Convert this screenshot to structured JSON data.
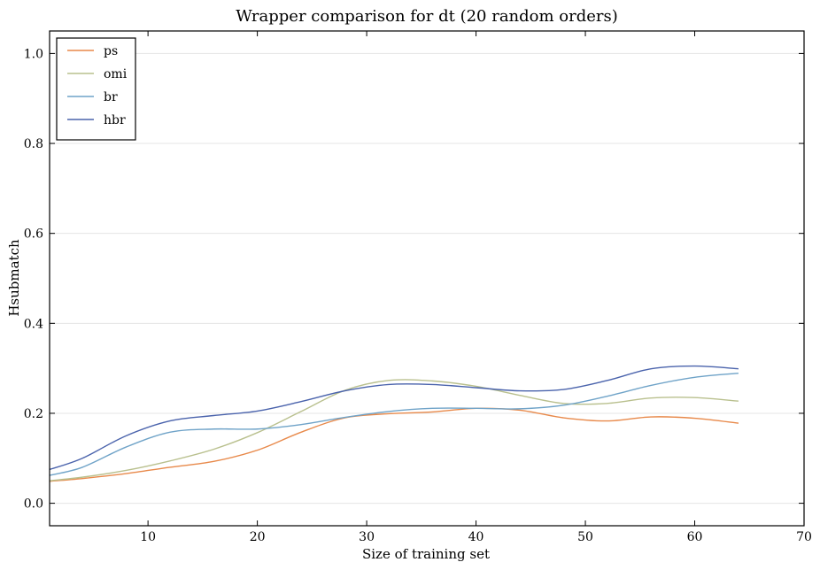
{
  "chart_data": {
    "type": "line",
    "title": "Wrapper comparison for dt (20 random orders)",
    "xlabel": "Size of training set",
    "ylabel": "Hsubmatch",
    "xlim": [
      1,
      70
    ],
    "ylim": [
      -0.05,
      1.05
    ],
    "xticks": [
      10,
      20,
      30,
      40,
      50,
      60,
      70
    ],
    "yticks": [
      0.0,
      0.2,
      0.4,
      0.6,
      0.8,
      1.0
    ],
    "xtick_labels": [
      "10",
      "20",
      "30",
      "40",
      "50",
      "60",
      "70"
    ],
    "ytick_labels": [
      "0.0",
      "0.2",
      "0.4",
      "0.6",
      "0.8",
      "1.0"
    ],
    "grid": "horizontal",
    "legend_position": "top-left",
    "x": [
      1,
      4,
      8,
      12,
      16,
      20,
      24,
      28,
      32,
      36,
      40,
      44,
      48,
      52,
      56,
      60,
      64
    ],
    "series": [
      {
        "name": "ps",
        "color": "#e8894a",
        "values": [
          0.049,
          0.055,
          0.066,
          0.08,
          0.093,
          0.118,
          0.158,
          0.19,
          0.199,
          0.203,
          0.211,
          0.207,
          0.19,
          0.183,
          0.192,
          0.189,
          0.178
        ]
      },
      {
        "name": "omi",
        "color": "#b9c08e",
        "values": [
          0.05,
          0.058,
          0.073,
          0.094,
          0.12,
          0.157,
          0.204,
          0.251,
          0.273,
          0.272,
          0.26,
          0.24,
          0.222,
          0.222,
          0.234,
          0.235,
          0.227
        ]
      },
      {
        "name": "br",
        "color": "#6fa3c8",
        "values": [
          0.062,
          0.08,
          0.125,
          0.158,
          0.165,
          0.165,
          0.175,
          0.191,
          0.204,
          0.211,
          0.211,
          0.21,
          0.218,
          0.238,
          0.262,
          0.28,
          0.289
        ]
      },
      {
        "name": "hbr",
        "color": "#4a63ac",
        "values": [
          0.075,
          0.1,
          0.15,
          0.183,
          0.195,
          0.205,
          0.226,
          0.25,
          0.264,
          0.264,
          0.257,
          0.25,
          0.253,
          0.273,
          0.299,
          0.305,
          0.299
        ]
      }
    ]
  }
}
